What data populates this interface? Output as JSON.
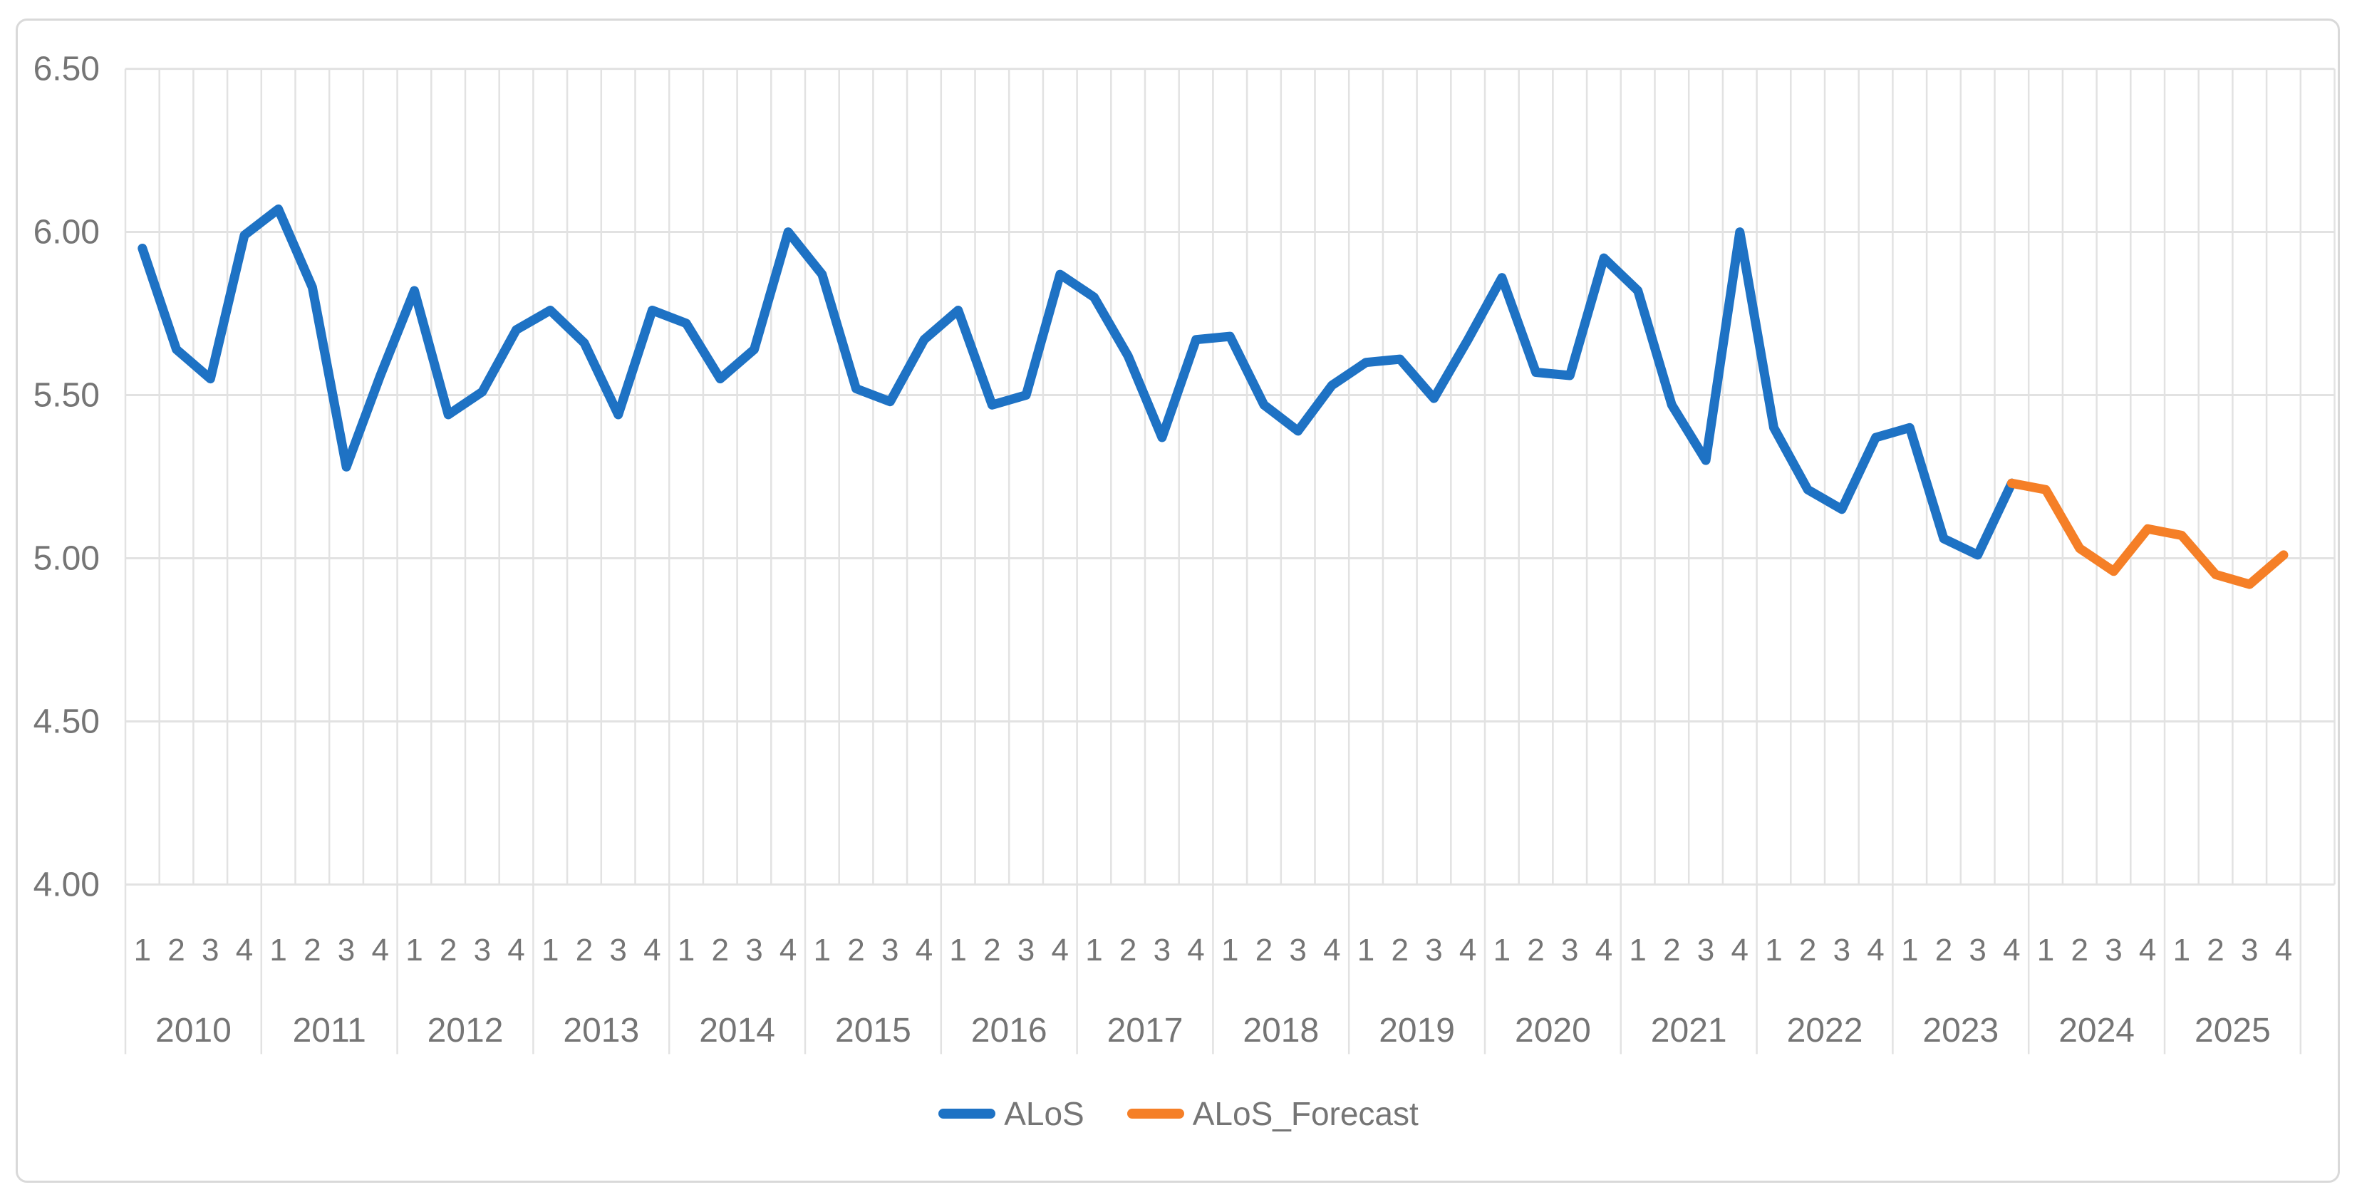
{
  "chart_data": {
    "type": "line",
    "title": "",
    "xlabel": "",
    "ylabel": "",
    "grid": true,
    "legend_position": "bottom",
    "years": [
      "2010",
      "2011",
      "2012",
      "2013",
      "2014",
      "2015",
      "2016",
      "2017",
      "2018",
      "2019",
      "2020",
      "2021",
      "2022",
      "2023",
      "2024",
      "2025"
    ],
    "quarter_labels": [
      "1",
      "2",
      "3",
      "4"
    ],
    "y_axis": {
      "min": 4.0,
      "max": 6.5,
      "step": 0.5,
      "tick_labels": [
        "6.50",
        "6.00",
        "5.50",
        "5.00",
        "4.50",
        "4.00"
      ]
    },
    "series": [
      {
        "name": "ALoS",
        "color": "#1E72C4",
        "start_index": 0,
        "values": [
          5.95,
          5.64,
          5.55,
          5.99,
          6.07,
          5.83,
          5.28,
          5.56,
          5.82,
          5.44,
          5.51,
          5.7,
          5.76,
          5.66,
          5.44,
          5.76,
          5.72,
          5.55,
          5.64,
          6.0,
          5.87,
          5.52,
          5.48,
          5.67,
          5.76,
          5.47,
          5.5,
          5.87,
          5.8,
          5.62,
          5.37,
          5.67,
          5.68,
          5.47,
          5.39,
          5.53,
          5.6,
          5.61,
          5.49,
          5.67,
          5.86,
          5.57,
          5.56,
          5.92,
          5.82,
          5.47,
          5.3,
          6.0,
          5.4,
          5.21,
          5.15,
          5.37,
          5.4,
          5.06,
          5.01,
          5.23
        ]
      },
      {
        "name": "ALoS_Forecast",
        "color": "#F57F27",
        "start_index": 55,
        "values": [
          5.23,
          5.21,
          5.03,
          4.96,
          5.09,
          5.07,
          4.95,
          4.92,
          5.01
        ]
      }
    ]
  },
  "colors": {
    "gridline": "#E2E2E2",
    "axis_text": "#757575",
    "frame_border": "#D9D9D9",
    "background": "#FFFFFF"
  }
}
